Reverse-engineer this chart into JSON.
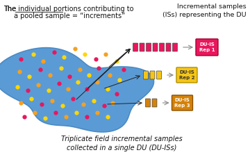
{
  "bg_color": "#ffffff",
  "blob_color": "#5b9bd5",
  "blob_edge_color": "#4a8bc4",
  "dot_colors": {
    "pink": "#e8175d",
    "yellow": "#ffd700",
    "orange": "#f5a020"
  },
  "title_line1": "The ",
  "title_underlined": "individual portions",
  "title_line1_rest": " contributing to",
  "title_line2": "a pooled sample = “increments”",
  "bottom_text": "Triplicate field incremental samples\ncollected in a single DU (DU-ISs)",
  "top_right_text": "Incremental samples\n(ISs) representing the DU",
  "rep1_label": "DU-IS\nRep 1",
  "rep2_label": "DU-IS\nRep 2",
  "rep3_label": "DU-IS\nRep 3",
  "rep1_color": "#e8175d",
  "rep2_color": "#f5c518",
  "rep3_color": "#d4820a",
  "rep1_edge": "#aa0030",
  "rep2_edge": "#b09000",
  "rep3_edge": "#8b5000",
  "arrow_color": "#222222",
  "line_color": "#888888",
  "dot_data": [
    [
      30,
      85,
      "pink"
    ],
    [
      48,
      78,
      "yellow"
    ],
    [
      62,
      88,
      "orange"
    ],
    [
      78,
      75,
      "pink"
    ],
    [
      92,
      82,
      "yellow"
    ],
    [
      108,
      70,
      "orange"
    ],
    [
      122,
      78,
      "yellow"
    ],
    [
      138,
      85,
      "pink"
    ],
    [
      152,
      78,
      "orange"
    ],
    [
      168,
      88,
      "yellow"
    ],
    [
      178,
      100,
      "pink"
    ],
    [
      28,
      103,
      "orange"
    ],
    [
      42,
      110,
      "yellow"
    ],
    [
      58,
      100,
      "pink"
    ],
    [
      72,
      108,
      "orange"
    ],
    [
      88,
      98,
      "yellow"
    ],
    [
      100,
      110,
      "pink"
    ],
    [
      115,
      100,
      "orange"
    ],
    [
      128,
      108,
      "yellow"
    ],
    [
      142,
      98,
      "pink"
    ],
    [
      158,
      108,
      "orange"
    ],
    [
      172,
      115,
      "yellow"
    ],
    [
      25,
      125,
      "yellow"
    ],
    [
      40,
      130,
      "pink"
    ],
    [
      55,
      122,
      "orange"
    ],
    [
      70,
      130,
      "yellow"
    ],
    [
      85,
      120,
      "pink"
    ],
    [
      98,
      128,
      "orange"
    ],
    [
      112,
      118,
      "yellow"
    ],
    [
      125,
      128,
      "pink"
    ],
    [
      140,
      118,
      "orange"
    ],
    [
      155,
      128,
      "yellow"
    ],
    [
      168,
      135,
      "pink"
    ],
    [
      30,
      148,
      "orange"
    ],
    [
      45,
      142,
      "yellow"
    ],
    [
      60,
      150,
      "pink"
    ],
    [
      75,
      145,
      "orange"
    ],
    [
      90,
      152,
      "yellow"
    ],
    [
      105,
      142,
      "pink"
    ],
    [
      120,
      150,
      "orange"
    ],
    [
      135,
      145,
      "yellow"
    ],
    [
      150,
      152,
      "pink"
    ],
    [
      162,
      148,
      "orange"
    ],
    [
      35,
      168,
      "pink"
    ],
    [
      50,
      162,
      "orange"
    ],
    [
      65,
      170,
      "yellow"
    ],
    [
      80,
      162,
      "pink"
    ],
    [
      95,
      168,
      "orange"
    ],
    [
      110,
      162,
      "yellow"
    ],
    [
      125,
      168,
      "pink"
    ],
    [
      140,
      162,
      "orange"
    ],
    [
      155,
      168,
      "yellow"
    ]
  ]
}
